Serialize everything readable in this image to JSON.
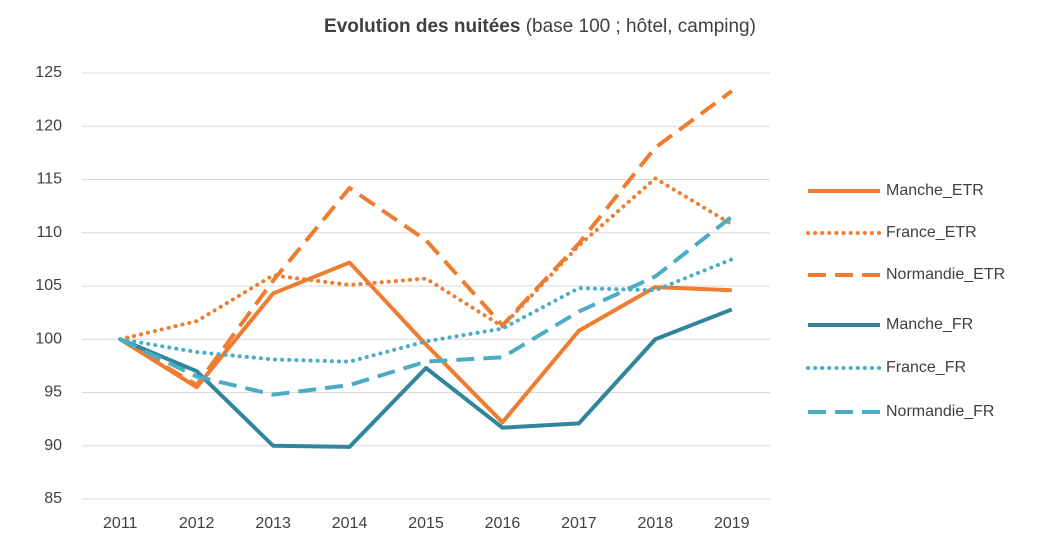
{
  "chart_data": {
    "type": "line",
    "title": "Evolution des nuitées",
    "subtitle": "(base 100 ; hôtel, camping)",
    "categories": [
      "2011",
      "2012",
      "2013",
      "2014",
      "2015",
      "2016",
      "2017",
      "2018",
      "2019"
    ],
    "series": [
      {
        "name": "Manche_ETR",
        "color": "#ed7d31",
        "style": "solid",
        "values": [
          100,
          95.5,
          104.3,
          107.2,
          99.5,
          92.2,
          100.8,
          104.9,
          104.6
        ]
      },
      {
        "name": "France_ETR",
        "color": "#ed7d31",
        "style": "dotted",
        "values": [
          100,
          101.7,
          106,
          105.1,
          105.7,
          101.2,
          108.8,
          115.1,
          110.8
        ]
      },
      {
        "name": "Normandie_ETR",
        "color": "#ed7d31",
        "style": "dashed",
        "values": [
          100,
          95.7,
          105.5,
          114.2,
          109.3,
          101.3,
          109,
          118,
          123.3
        ]
      },
      {
        "name": "Manche_FR",
        "color": "#31859c",
        "style": "solid",
        "values": [
          100,
          97,
          90,
          89.9,
          97.3,
          91.7,
          92.1,
          100,
          102.8
        ]
      },
      {
        "name": "France_FR",
        "color": "#4bacc6",
        "style": "dotted",
        "values": [
          100,
          98.8,
          98.1,
          97.9,
          99.8,
          101,
          104.8,
          104.6,
          107.5
        ]
      },
      {
        "name": "Normandie_FR",
        "color": "#4bacc6",
        "style": "dashed",
        "values": [
          100,
          96.5,
          94.8,
          95.7,
          97.9,
          98.3,
          102.6,
          105.9,
          111.5
        ]
      }
    ],
    "ylim": [
      85,
      125
    ],
    "yticks": [
      85,
      90,
      95,
      100,
      105,
      110,
      115,
      120,
      125
    ],
    "grid": true,
    "legend": "right"
  }
}
